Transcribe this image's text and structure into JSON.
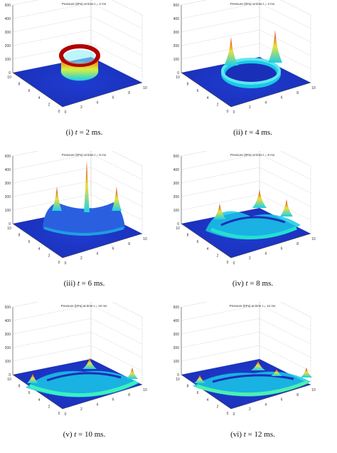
{
  "figure": {
    "panels": [
      {
        "id": "i",
        "title": "Pressure (kPa) at time t = 2 ms",
        "caption_prefix": "(i) ",
        "caption_var": "t",
        "caption_value": " = 2 ms."
      },
      {
        "id": "ii",
        "title": "Pressure (kPa) at time t = 4 ms",
        "caption_prefix": "(ii) ",
        "caption_var": "t",
        "caption_value": " = 4 ms."
      },
      {
        "id": "iii",
        "title": "Pressure (kPa) at time t = 6 ms",
        "caption_prefix": "(iii) ",
        "caption_var": "t",
        "caption_value": " = 6 ms."
      },
      {
        "id": "iv",
        "title": "Pressure (kPa) at time t = 8 ms",
        "caption_prefix": "(iv) ",
        "caption_var": "t",
        "caption_value": " = 8 ms."
      },
      {
        "id": "v",
        "title": "Pressure (kPa) at time t = 10 ms",
        "caption_prefix": "(v) ",
        "caption_var": "t",
        "caption_value": " = 10 ms."
      },
      {
        "id": "vi",
        "title": "Pressure (kPa) at time t = 12 ms",
        "caption_prefix": "(vi) ",
        "caption_var": "t",
        "caption_value": " = 12 ms."
      }
    ],
    "z_ticks": [
      "500",
      "400",
      "300",
      "200",
      "100",
      "0"
    ],
    "left_ticks": [
      "10",
      "8",
      "6",
      "4",
      "2",
      "0"
    ],
    "right_ticks": [
      "0",
      "2",
      "4",
      "6",
      "8",
      "10"
    ],
    "colors": {
      "low": "#1a2fb8",
      "mid": "#19d0e8",
      "high": "#e01f10",
      "axis": "#444444",
      "grid": "#bbbbbb"
    }
  }
}
